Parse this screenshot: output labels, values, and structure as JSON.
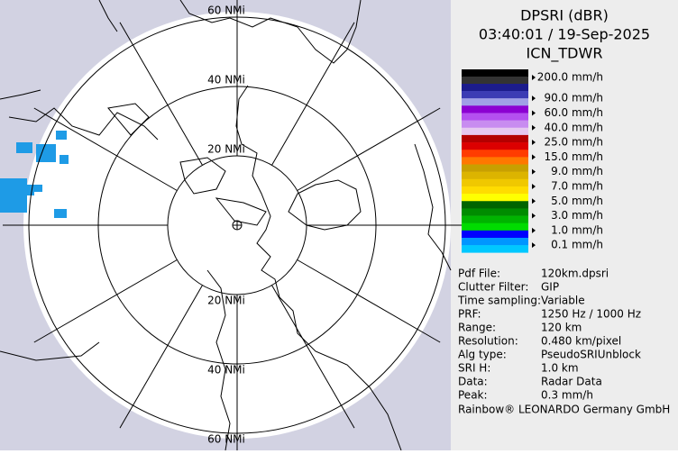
{
  "header": {
    "lines": [
      "DPSRI (dBR)",
      "03:40:01 / 19-Sep-2025",
      "ICN_TDWR"
    ]
  },
  "map": {
    "ring_labels_top": [
      "60 NMi",
      "40 NMi",
      "20 NMi"
    ],
    "ring_labels_bottom": [
      "20 NMi",
      "40 NMi",
      "60 NMi"
    ]
  },
  "legend": [
    {
      "label": "200.0 mm/h",
      "colors": [
        "#000000",
        "#333333",
        "#1c1c8c"
      ]
    },
    {
      "label": "90.0 mm/h",
      "colors": [
        "#3c3cb4",
        "#a0a0e6"
      ]
    },
    {
      "label": "60.0 mm/h",
      "colors": [
        "#8c00d2",
        "#b450f0"
      ]
    },
    {
      "label": "40.0 mm/h",
      "colors": [
        "#c88cf0",
        "#e6c8f0"
      ]
    },
    {
      "label": "25.0 mm/h",
      "colors": [
        "#b40000",
        "#dc0000"
      ]
    },
    {
      "label": "15.0 mm/h",
      "colors": [
        "#ff3c00",
        "#ff7800"
      ]
    },
    {
      "label": "9.0 mm/h",
      "colors": [
        "#c8a000",
        "#dcb400"
      ]
    },
    {
      "label": "7.0 mm/h",
      "colors": [
        "#f0c800",
        "#ffdc00"
      ]
    },
    {
      "label": "5.0 mm/h",
      "colors": [
        "#ffff00",
        "#006400"
      ]
    },
    {
      "label": "3.0 mm/h",
      "colors": [
        "#008c00",
        "#00b400"
      ]
    },
    {
      "label": "1.0 mm/h",
      "colors": [
        "#00dc00",
        "#0000ff"
      ]
    },
    {
      "label": "0.1 mm/h",
      "colors": [
        "#0096ff",
        "#00c8ff"
      ]
    }
  ],
  "info": [
    [
      "Pdf File:",
      "120km.dpsri"
    ],
    [
      "Clutter Filter:",
      "GIP"
    ],
    [
      "Time sampling:",
      "Variable"
    ],
    [
      "PRF:",
      "1250 Hz / 1000 Hz"
    ],
    [
      "Range:",
      "120 km"
    ],
    [
      "Resolution:",
      "0.480 km/pixel"
    ],
    [
      "Alg type:",
      "PseudoSRIUnblock"
    ],
    [
      "SRI H:",
      "1.0 km"
    ],
    [
      "Data:",
      "Radar Data"
    ],
    [
      "Peak:",
      "0.3 mm/h"
    ]
  ],
  "footer": "Rainbow® LEONARDO Germany GmbH"
}
